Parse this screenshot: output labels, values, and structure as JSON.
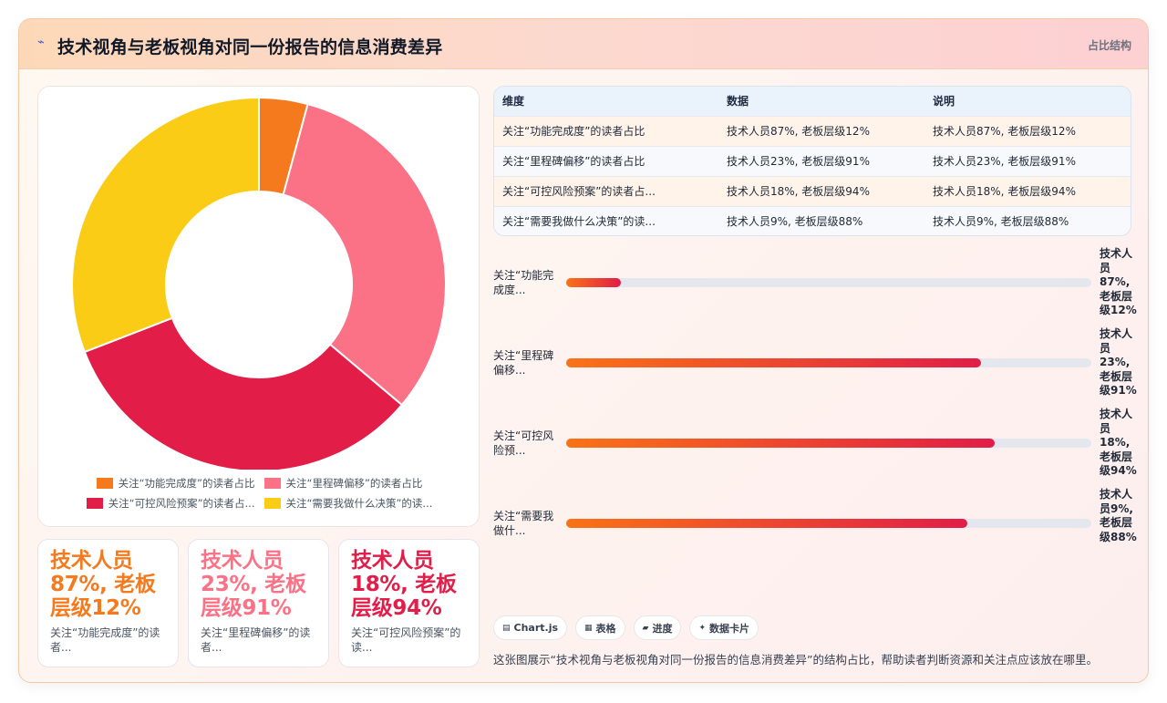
{
  "header": {
    "title": "技术视角与老板视角对同一份报告的信息消费差异",
    "tag": "占比结构"
  },
  "colors": {
    "orange": "#f57a1e",
    "pink": "#fb7185",
    "crimson": "#e11d48",
    "yellow": "#facc15"
  },
  "chart_data": {
    "type": "pie",
    "donut": true,
    "labels": [
      "关注“功能完成度”的读者占比",
      "关注“里程碑偏移”的读者占比",
      "关注“可控风险预案”的读者占比",
      "关注“需要我做什么决策”的读者占比"
    ],
    "legend_labels": [
      "关注“功能完成度”的读者占比",
      "关注“里程碑偏移”的读者占比",
      "关注“可控风险预案”的读者占...",
      "关注“需要我做什么决策”的读..."
    ],
    "values": [
      12,
      91,
      94,
      88
    ],
    "colors": [
      "#f57a1e",
      "#fb7185",
      "#e11d48",
      "#facc15"
    ],
    "legend_position": "bottom"
  },
  "table": {
    "headers": [
      "维度",
      "数据",
      "说明"
    ],
    "rows": [
      [
        "关注“功能完成度”的读者占比",
        "技术人员87%, 老板层级12%",
        "技术人员87%, 老板层级12%"
      ],
      [
        "关注“里程碑偏移”的读者占比",
        "技术人员23%, 老板层级91%",
        "技术人员23%, 老板层级91%"
      ],
      [
        "关注“可控风险预案”的读者占...",
        "技术人员18%, 老板层级94%",
        "技术人员18%, 老板层级94%"
      ],
      [
        "关注“需要我做什么决策”的读...",
        "技术人员9%, 老板层级88%",
        "技术人员9%, 老板层级88%"
      ]
    ]
  },
  "progress": [
    {
      "label": "关注“功能完成度...",
      "value_text": "技术人员87%, 老板层级12%",
      "fraction": 0.104
    },
    {
      "label": "关注“里程碑偏移...",
      "value_text": "技术人员23%, 老板层级91%",
      "fraction": 0.79
    },
    {
      "label": "关注“可控风险预...",
      "value_text": "技术人员18%, 老板层级94%",
      "fraction": 0.816
    },
    {
      "label": "关注“需要我做什...",
      "value_text": "技术人员9%, 老板层级88%",
      "fraction": 0.764
    }
  ],
  "stat_cards": [
    {
      "big": "技术人员87%, 老板层级12%",
      "sub": "关注“功能完成度”的读者...",
      "color": "#f57a1e"
    },
    {
      "big": "技术人员23%, 老板层级91%",
      "sub": "关注“里程碑偏移”的读者...",
      "color": "#fb7185"
    },
    {
      "big": "技术人员18%, 老板层级94%",
      "sub": "关注“可控风险预案”的读...",
      "color": "#e11d48"
    }
  ],
  "chips": [
    {
      "icon": "▤",
      "label": "Chart.js"
    },
    {
      "icon": "▦",
      "label": "表格"
    },
    {
      "icon": "▰",
      "label": "进度"
    },
    {
      "icon": "✦",
      "label": "数据卡片"
    }
  ],
  "caption": "这张图展示“技术视角与老板视角对同一份报告的信息消费差异”的结构占比，帮助读者判断资源和关注点应该放在哪里。"
}
